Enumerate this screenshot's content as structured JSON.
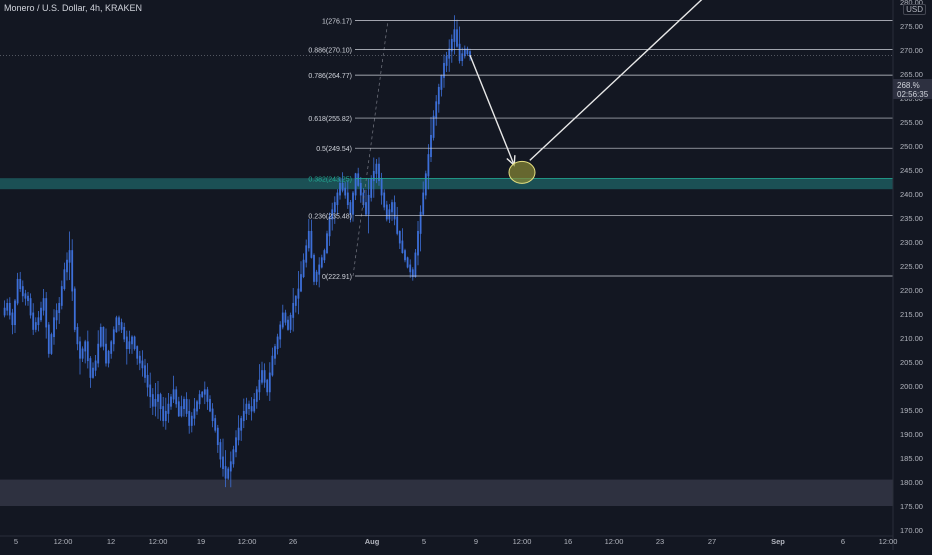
{
  "header": {
    "title": "Monero / U.S. Dollar, 4h, KRAKEN",
    "currency": "USD"
  },
  "price_tag": {
    "price": "268.%",
    "countdown": "02:56:35"
  },
  "colors": {
    "background": "#131722",
    "candle": "#3d6fd8",
    "fib_line": "#d1d4dc",
    "fib_highlight": "#22ab94",
    "support_zone": "#1d5a5e",
    "demand_zone": "#2e3140",
    "arrow": "#e8e8e8",
    "ellipse_fill": "#8a8a35",
    "ellipse_stroke": "#e6e080"
  },
  "chart_data": {
    "type": "candlestick",
    "title": "Monero / U.S. Dollar, 4h, KRAKEN",
    "y_axis_ticks": [
      "280.00",
      "275.00",
      "270.00",
      "265.00",
      "260.00",
      "255.00",
      "250.00",
      "245.00",
      "240.00",
      "235.00",
      "230.00",
      "225.00",
      "220.00",
      "215.00",
      "210.00",
      "205.00",
      "200.00",
      "195.00",
      "190.00",
      "185.00",
      "180.00",
      "175.00",
      "170.00"
    ],
    "ylim": [
      170,
      285
    ],
    "x_axis_ticks": [
      "5",
      "12:00",
      "12",
      "12:00",
      "19",
      "12:00",
      "26",
      "Aug",
      "5",
      "9",
      "12:00",
      "16",
      "12:00",
      "23",
      "27",
      "Sep",
      "6",
      "12:00"
    ],
    "fib_levels": [
      {
        "label": "1(276.17)",
        "ratio": 1,
        "price": 276.17
      },
      {
        "label": "0.886(270.10)",
        "ratio": 0.886,
        "price": 270.1
      },
      {
        "label": "0.786(264.77)",
        "ratio": 0.786,
        "price": 264.77
      },
      {
        "label": "0.618(255.82)",
        "ratio": 0.618,
        "price": 255.82
      },
      {
        "label": "0.5(249.54)",
        "ratio": 0.5,
        "price": 249.54
      },
      {
        "label": "0.382(243.25)",
        "ratio": 0.382,
        "price": 243.25
      },
      {
        "label": "0.236(235.48)",
        "ratio": 0.236,
        "price": 235.48
      },
      {
        "label": "0(222.91)",
        "ratio": 0,
        "price": 222.91
      }
    ],
    "support_zone": [
      241,
      243.3
    ],
    "demand_zone": [
      175,
      180.5
    ],
    "current_price": 268.9,
    "close_path": [
      [
        0,
        215
      ],
      [
        2,
        217
      ],
      [
        4,
        213
      ],
      [
        6,
        222
      ],
      [
        8,
        219
      ],
      [
        10,
        218
      ],
      [
        12,
        212
      ],
      [
        14,
        214
      ],
      [
        16,
        218
      ],
      [
        18,
        207
      ],
      [
        20,
        214
      ],
      [
        22,
        217
      ],
      [
        24,
        224
      ],
      [
        26,
        228
      ],
      [
        28,
        212
      ],
      [
        30,
        206
      ],
      [
        32,
        209
      ],
      [
        34,
        202
      ],
      [
        36,
        205
      ],
      [
        38,
        212
      ],
      [
        40,
        205
      ],
      [
        42,
        209
      ],
      [
        44,
        214
      ],
      [
        46,
        212
      ],
      [
        48,
        208
      ],
      [
        50,
        210
      ],
      [
        52,
        206
      ],
      [
        54,
        204
      ],
      [
        56,
        200
      ],
      [
        58,
        196
      ],
      [
        60,
        198
      ],
      [
        62,
        193
      ],
      [
        64,
        196
      ],
      [
        66,
        199
      ],
      [
        68,
        194
      ],
      [
        70,
        197
      ],
      [
        72,
        192
      ],
      [
        74,
        195
      ],
      [
        76,
        198
      ],
      [
        78,
        199
      ],
      [
        80,
        195
      ],
      [
        82,
        191
      ],
      [
        84,
        185
      ],
      [
        86,
        181
      ],
      [
        88,
        184
      ],
      [
        90,
        189
      ],
      [
        92,
        193
      ],
      [
        94,
        196
      ],
      [
        96,
        195
      ],
      [
        98,
        199
      ],
      [
        100,
        203
      ],
      [
        102,
        199
      ],
      [
        104,
        206
      ],
      [
        106,
        210
      ],
      [
        108,
        215
      ],
      [
        110,
        212
      ],
      [
        112,
        217
      ],
      [
        114,
        220
      ],
      [
        116,
        226
      ],
      [
        118,
        232
      ],
      [
        120,
        222
      ],
      [
        122,
        225
      ],
      [
        124,
        228
      ],
      [
        126,
        235
      ],
      [
        128,
        238
      ],
      [
        130,
        242
      ],
      [
        132,
        240
      ],
      [
        134,
        236
      ],
      [
        136,
        244
      ],
      [
        138,
        240
      ],
      [
        140,
        236
      ],
      [
        142,
        243
      ],
      [
        144,
        246
      ],
      [
        146,
        240
      ],
      [
        148,
        235
      ],
      [
        150,
        238
      ],
      [
        152,
        232
      ],
      [
        154,
        228
      ],
      [
        156,
        225
      ],
      [
        158,
        223
      ],
      [
        160,
        232
      ],
      [
        162,
        240
      ],
      [
        164,
        248
      ],
      [
        166,
        256
      ],
      [
        168,
        262
      ],
      [
        170,
        267
      ],
      [
        172,
        270
      ],
      [
        174,
        274
      ],
      [
        176,
        268
      ],
      [
        178,
        270
      ],
      [
        180,
        268.9
      ]
    ],
    "scenario_arrow_1": {
      "from": [
        180,
        268.9
      ],
      "to": [
        197,
        246
      ]
    },
    "scenario_arrow_2": {
      "from": [
        203,
        247
      ],
      "to": [
        278,
        285
      ]
    },
    "target_ellipse": {
      "center": [
        200,
        244.5
      ]
    }
  }
}
